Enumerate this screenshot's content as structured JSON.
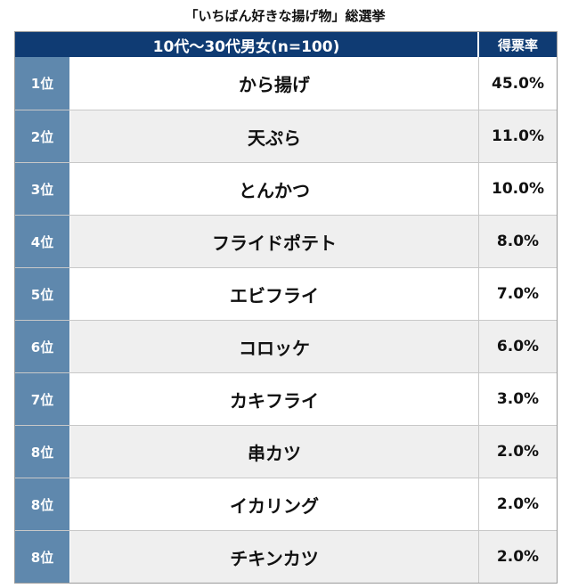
{
  "chart_data": {
    "type": "table",
    "title": "「いちばん好きな揚げ物」総選挙",
    "header": {
      "group_label": "10代〜30代男女(n=100)",
      "value_label": "得票率"
    },
    "rows": [
      {
        "rank": "1位",
        "item": "から揚げ",
        "share": "45.0%"
      },
      {
        "rank": "2位",
        "item": "天ぷら",
        "share": "11.0%"
      },
      {
        "rank": "3位",
        "item": "とんかつ",
        "share": "10.0%"
      },
      {
        "rank": "4位",
        "item": "フライドポテト",
        "share": "8.0%"
      },
      {
        "rank": "5位",
        "item": "エビフライ",
        "share": "7.0%"
      },
      {
        "rank": "6位",
        "item": "コロッケ",
        "share": "6.0%"
      },
      {
        "rank": "7位",
        "item": "カキフライ",
        "share": "3.0%"
      },
      {
        "rank": "8位",
        "item": "串カツ",
        "share": "2.0%"
      },
      {
        "rank": "8位",
        "item": "イカリング",
        "share": "2.0%"
      },
      {
        "rank": "8位",
        "item": "チキンカツ",
        "share": "2.0%"
      }
    ]
  },
  "colors": {
    "header_bg": "#0f3b73",
    "rank_bg": "#5f88ad",
    "alt_row_bg": "#efefef"
  }
}
